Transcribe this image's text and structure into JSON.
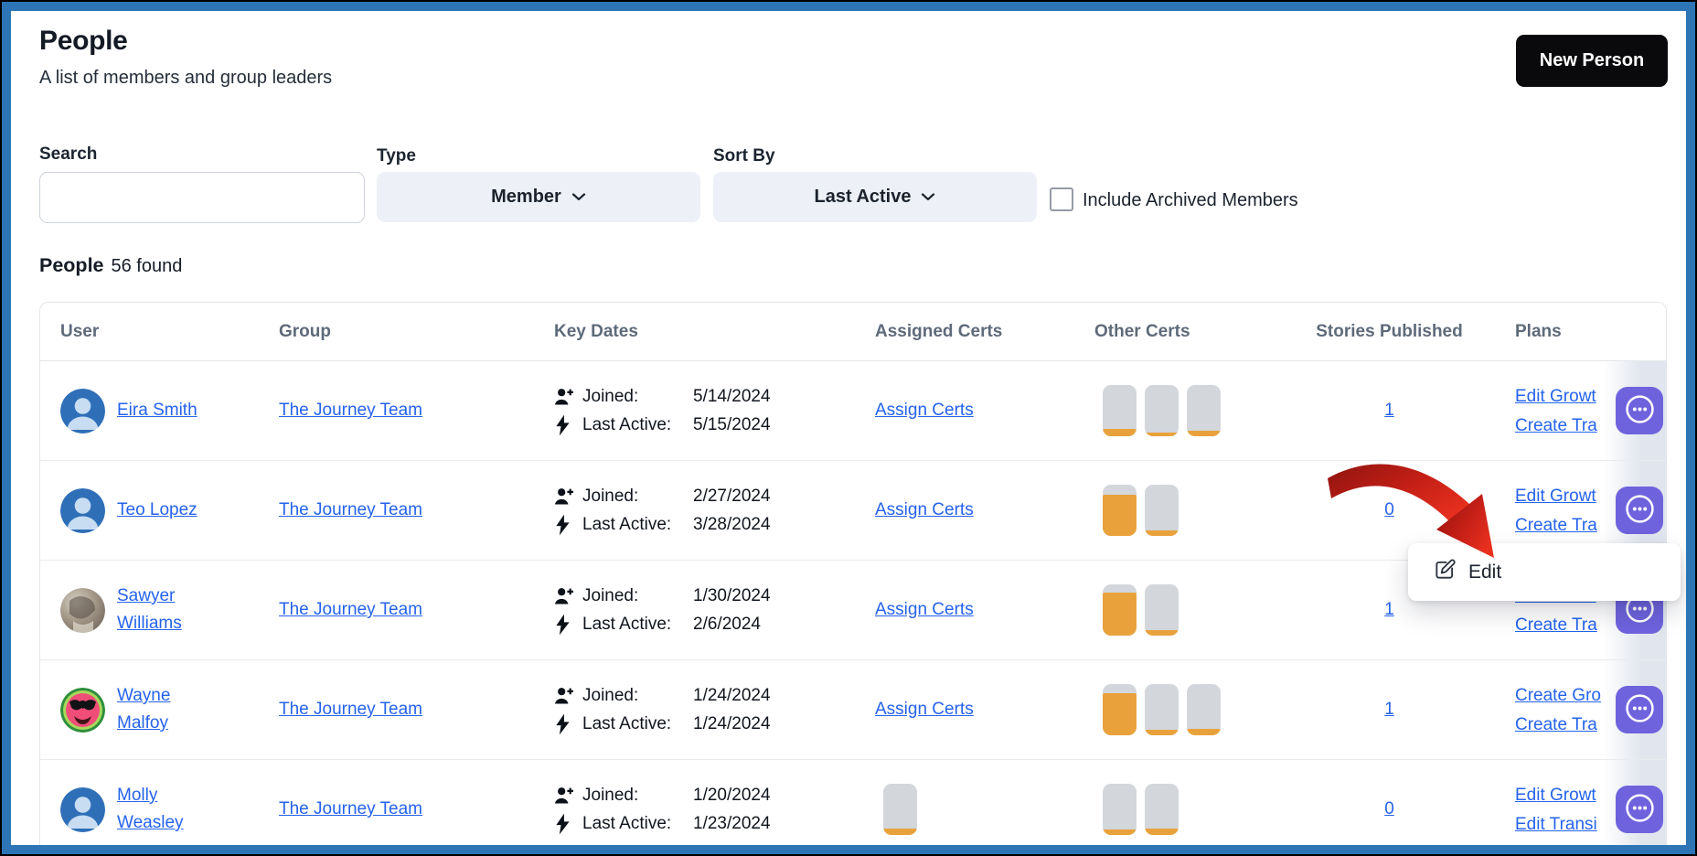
{
  "header": {
    "title": "People",
    "subtitle": "A list of members and group leaders",
    "new_person_label": "New Person"
  },
  "filters": {
    "search_label": "Search",
    "search_value": "",
    "type_label": "Type",
    "type_value": "Member",
    "sort_by_label": "Sort By",
    "sort_by_value": "Last Active",
    "include_archived_label": "Include Archived Members",
    "include_archived_checked": false
  },
  "results_bar": {
    "title": "People",
    "count": "56 found"
  },
  "table": {
    "columns": [
      "User",
      "Group",
      "Key Dates",
      "Assigned Certs",
      "Other Certs",
      "Stories Published",
      "Plans"
    ],
    "labels": {
      "joined": "Joined:",
      "last_active": "Last Active:",
      "assign_certs": "Assign Certs"
    },
    "rows": [
      {
        "name": "Eira Smith",
        "avatar": "default-blue",
        "group": "The Journey Team",
        "joined": "5/14/2024",
        "last_active": "5/15/2024",
        "assigned_certs": {
          "kind": "link"
        },
        "other_certs_fills": [
          14,
          8,
          11
        ],
        "stories_published": "1",
        "plans": [
          "Edit Growt",
          "Create Tra"
        ]
      },
      {
        "name": "Teo Lopez",
        "avatar": "default-blue",
        "group": "The Journey Team",
        "joined": "2/27/2024",
        "last_active": "3/28/2024",
        "assigned_certs": {
          "kind": "link"
        },
        "other_certs_fills": [
          80,
          10
        ],
        "stories_published": "0",
        "plans": [
          "Edit Growt",
          "Create Tra"
        ]
      },
      {
        "name": "Sawyer Williams",
        "avatar": "photo",
        "group": "The Journey Team",
        "joined": "1/30/2024",
        "last_active": "2/6/2024",
        "assigned_certs": {
          "kind": "link"
        },
        "other_certs_fills": [
          84,
          10
        ],
        "stories_published": "1",
        "plans": [
          "Edit Growt",
          "Create Tra"
        ]
      },
      {
        "name": "Wayne Malfoy",
        "avatar": "watermelon",
        "group": "The Journey Team",
        "joined": "1/24/2024",
        "last_active": "1/24/2024",
        "assigned_certs": {
          "kind": "link"
        },
        "other_certs_fills": [
          82,
          10,
          12
        ],
        "stories_published": "1",
        "plans": [
          "Create Gro",
          "Create Tra"
        ]
      },
      {
        "name": "Molly Weasley",
        "avatar": "default-blue",
        "group": "The Journey Team",
        "joined": "1/20/2024",
        "last_active": "1/23/2024",
        "assigned_certs": {
          "kind": "badges",
          "fills": [
            12
          ]
        },
        "other_certs_fills": [
          10,
          12
        ],
        "stories_published": "0",
        "plans": [
          "Edit Growt",
          "Edit Transi"
        ]
      }
    ]
  },
  "context_menu": {
    "edit_label": "Edit"
  },
  "colors": {
    "frame_blue": "#2e75b6",
    "link_blue": "#2563eb",
    "accent_purple": "#6e63dd",
    "badge_orange": "#e9a23b",
    "badge_gray": "#d3d6db",
    "arrow_red": "#d3261a",
    "button_black": "#0a0a0c"
  }
}
